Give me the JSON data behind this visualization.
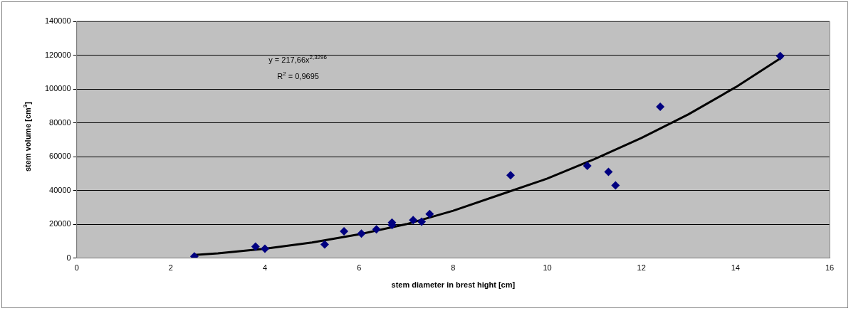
{
  "chart_data": {
    "type": "scatter",
    "xlabel": "stem diameter in brest hight [cm]",
    "ylabel": "stem volume [cm$^{3}$]",
    "xlim": [
      0,
      16
    ],
    "xticks": [
      0,
      2,
      4,
      6,
      8,
      10,
      12,
      14,
      16
    ],
    "ylim": [
      0,
      140000
    ],
    "yticks": [
      0,
      20000,
      40000,
      60000,
      80000,
      100000,
      120000,
      140000
    ],
    "grid": "y",
    "legend": false,
    "annotations": [
      "y = 217,66x$^{2,3296}$",
      "R$^{2}$ = 0,9695"
    ],
    "series": [
      {
        "marker": "diamond",
        "color": "#000080",
        "x": [
          2.5,
          3.8,
          4.0,
          5.27,
          5.68,
          6.05,
          6.37,
          6.7,
          6.7,
          7.15,
          7.33,
          7.5,
          9.22,
          10.85,
          11.3,
          11.45,
          12.4,
          14.95
        ],
        "values": [
          1000,
          6800,
          5500,
          8000,
          15800,
          14500,
          17000,
          19500,
          21000,
          22500,
          21500,
          26000,
          49000,
          54500,
          51000,
          43000,
          89500,
          119500
        ]
      },
      {
        "type": "line",
        "marker": "none",
        "color": "#000000",
        "x": [
          2.5,
          3,
          4,
          5,
          6,
          7,
          8,
          9,
          10,
          11,
          12,
          13,
          14,
          15
        ],
        "values": [
          1800,
          2800,
          5500,
          9200,
          14000,
          20000,
          28000,
          37500,
          47000,
          58500,
          71000,
          85000,
          101000,
          119000
        ]
      }
    ]
  }
}
